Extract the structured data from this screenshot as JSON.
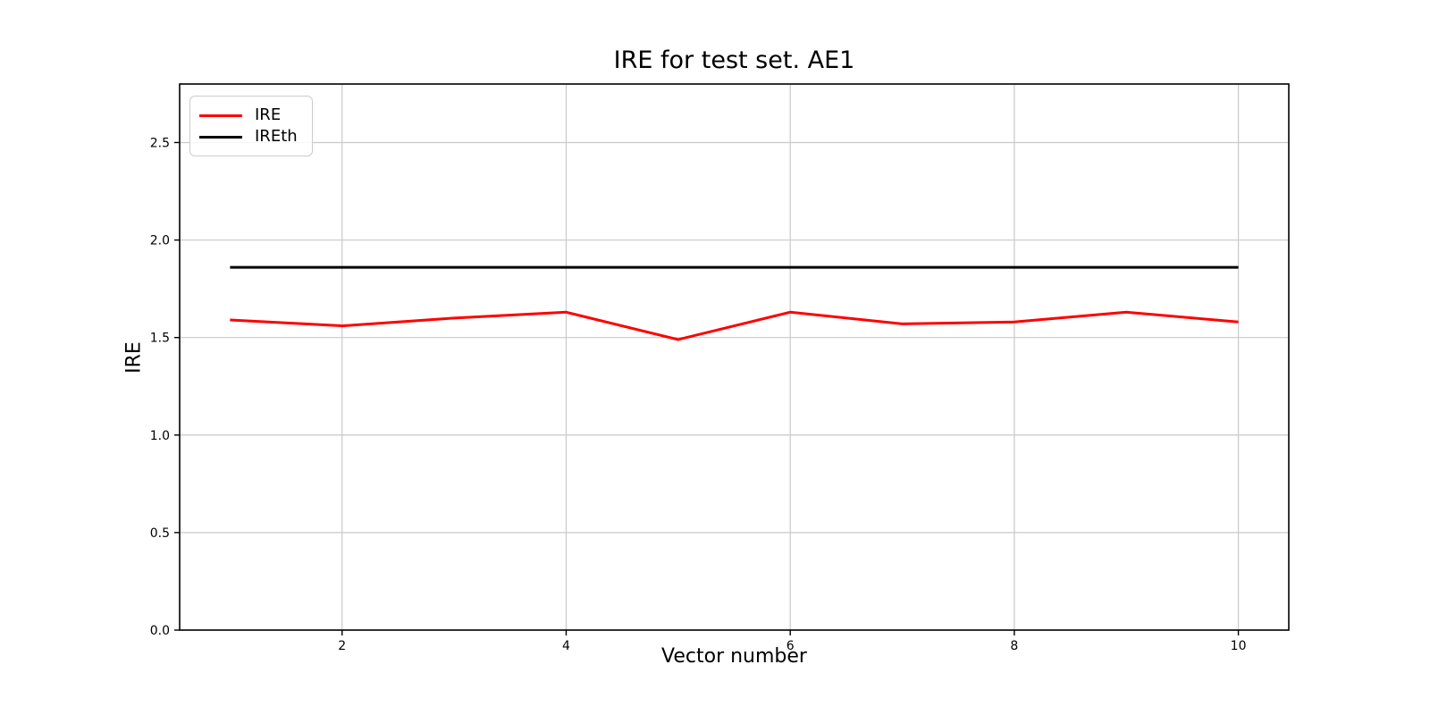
{
  "figure": {
    "title": "IRE for test set. AE1",
    "xlabel": "Vector number",
    "ylabel": "IRE"
  },
  "legend": {
    "items": [
      {
        "label": "IRE",
        "color": "#ff0000"
      },
      {
        "label": "IREth",
        "color": "#000000"
      }
    ]
  },
  "chart_data": {
    "type": "line",
    "title": "IRE for test set. AE1",
    "xlabel": "Vector number",
    "ylabel": "IRE",
    "x": [
      1,
      2,
      3,
      4,
      5,
      6,
      7,
      8,
      9,
      10
    ],
    "series": [
      {
        "name": "IRE",
        "color": "#ff0000",
        "values": [
          1.59,
          1.56,
          1.6,
          1.63,
          1.49,
          1.63,
          1.57,
          1.58,
          1.63,
          1.58
        ]
      },
      {
        "name": "IREth",
        "color": "#000000",
        "values": [
          1.86,
          1.86,
          1.86,
          1.86,
          1.86,
          1.86,
          1.86,
          1.86,
          1.86,
          1.86
        ]
      }
    ],
    "xlim": [
      0.55,
      10.45
    ],
    "ylim": [
      0,
      2.8
    ],
    "xticks": [
      2,
      4,
      6,
      8,
      10
    ],
    "yticks": [
      0.0,
      0.5,
      1.0,
      1.5,
      2.0,
      2.5
    ],
    "grid": true,
    "grid_color": "#c9c9c9",
    "legend_position": "upper left",
    "line_width": 3
  }
}
